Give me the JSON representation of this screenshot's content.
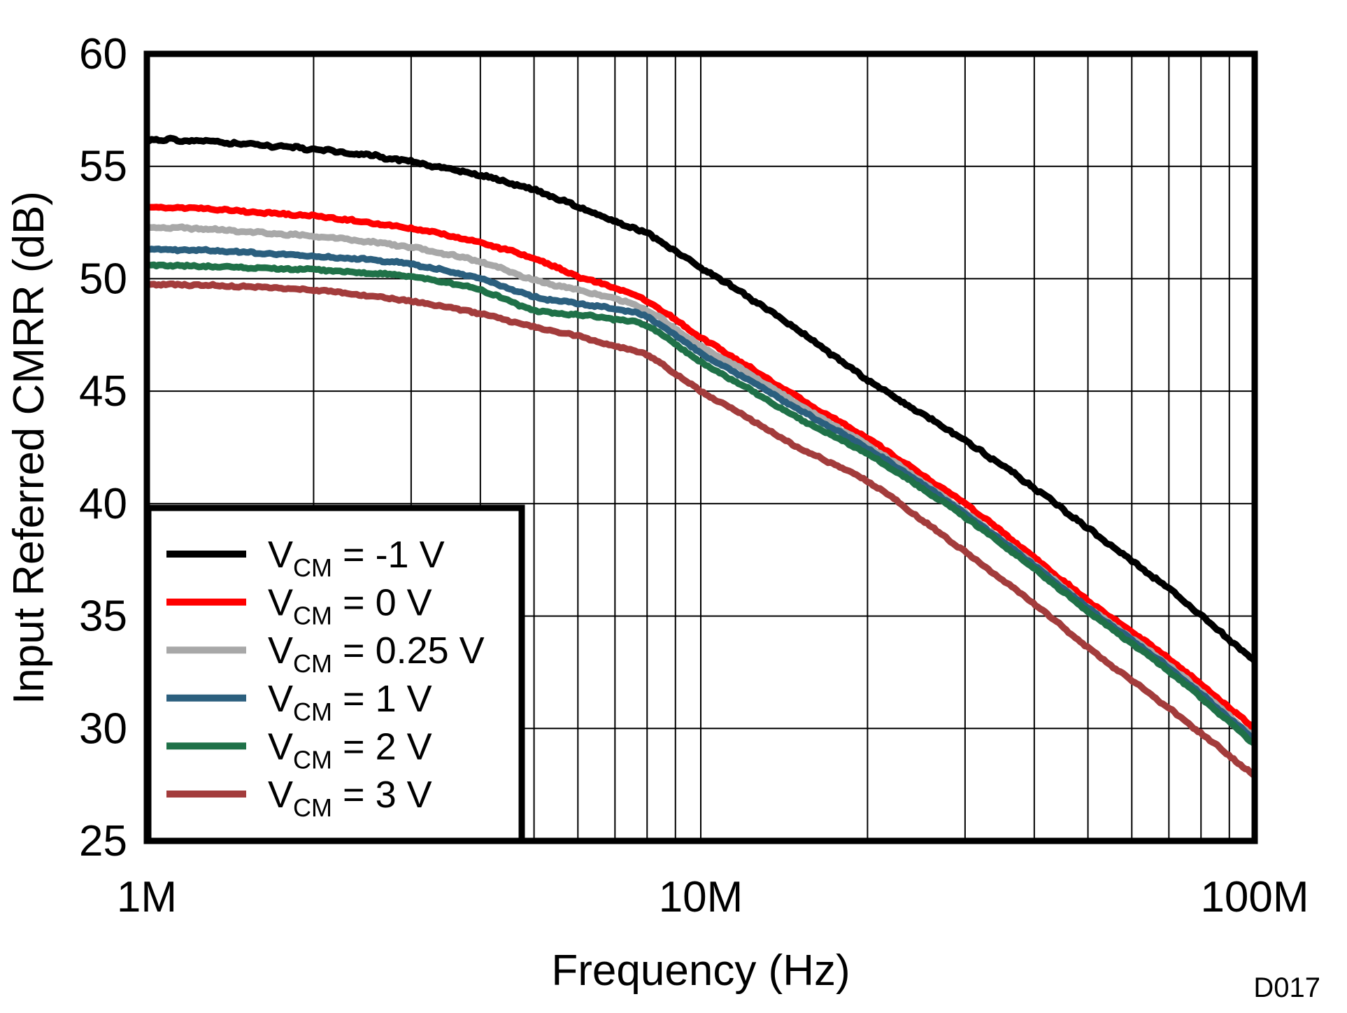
{
  "figure": {
    "watermark": "D017",
    "watermark_color": "#A9A9A9",
    "background": "#FFFFFF",
    "frame_color": "#000000",
    "grid_color": "#000000"
  },
  "chart_data": {
    "type": "line",
    "title": "",
    "xlabel": "Frequency (Hz)",
    "ylabel": "Input Referred CMRR (dB)",
    "x_scale": "log",
    "xlim_hz": [
      1000000,
      100000000
    ],
    "ylim_db": [
      25,
      60
    ],
    "grid": true,
    "legend_position": "bottom-left",
    "x_ticks": [
      {
        "value_hz": 1000000,
        "label": "1M"
      },
      {
        "value_hz": 10000000,
        "label": "10M"
      },
      {
        "value_hz": 100000000,
        "label": "100M"
      }
    ],
    "y_ticks": [
      {
        "value_db": 60,
        "label": "60"
      },
      {
        "value_db": 55,
        "label": "55"
      },
      {
        "value_db": 50,
        "label": "50"
      },
      {
        "value_db": 45,
        "label": "45"
      },
      {
        "value_db": 40,
        "label": "40"
      },
      {
        "value_db": 35,
        "label": "35"
      },
      {
        "value_db": 30,
        "label": "30"
      },
      {
        "value_db": 25,
        "label": "25"
      }
    ],
    "minor_grid_freqs_mhz": [
      2,
      3,
      4,
      5,
      6,
      7,
      8,
      9,
      10,
      20,
      30,
      40,
      50,
      60,
      70,
      80,
      90
    ],
    "x_mhz": [
      1,
      1.3,
      1.7,
      2,
      2.5,
      3,
      4,
      5,
      6,
      7,
      8,
      10,
      12,
      15,
      20,
      25,
      30,
      40,
      50,
      70,
      100
    ],
    "series": [
      {
        "name": "VCM = -1 V",
        "label_base": "V",
        "label_sub": "CM",
        "label_rest": " = -1 V",
        "color": "#000000",
        "noise": 2.0,
        "y_db": [
          56.2,
          56.1,
          55.9,
          55.75,
          55.5,
          55.2,
          54.6,
          53.95,
          53.2,
          52.55,
          52.0,
          50.5,
          49.3,
          47.7,
          45.5,
          44.0,
          42.8,
          40.7,
          38.9,
          36.2,
          33.0
        ]
      },
      {
        "name": "VCM = 0 V",
        "label_base": "V",
        "label_sub": "CM",
        "label_rest": " = 0 V",
        "color": "#FF0000",
        "noise": 1.5,
        "y_db": [
          53.2,
          53.1,
          52.9,
          52.8,
          52.5,
          52.25,
          51.6,
          50.9,
          50.1,
          49.6,
          49.0,
          47.4,
          46.2,
          44.7,
          42.9,
          41.3,
          40.0,
          37.6,
          35.7,
          33.1,
          30.0
        ]
      },
      {
        "name": "VCM = 0.25 V",
        "label_base": "V",
        "label_sub": "CM",
        "label_rest": " = 0.25 V",
        "color": "#A8A8A8",
        "noise": 1.5,
        "y_db": [
          52.3,
          52.2,
          52.0,
          51.9,
          51.65,
          51.4,
          50.75,
          49.95,
          49.5,
          49.1,
          48.6,
          47.0,
          45.9,
          44.4,
          42.6,
          41.0,
          39.6,
          37.3,
          35.4,
          32.8,
          29.6
        ]
      },
      {
        "name": "VCM = 1 V",
        "label_base": "V",
        "label_sub": "CM",
        "label_rest": " = 1 V",
        "color": "#2B5F7E",
        "noise": 1.4,
        "y_db": [
          51.3,
          51.25,
          51.1,
          51.0,
          50.85,
          50.65,
          50.0,
          49.2,
          48.9,
          48.65,
          48.3,
          46.7,
          45.6,
          44.2,
          42.45,
          40.9,
          39.55,
          37.25,
          35.35,
          32.7,
          29.5
        ]
      },
      {
        "name": "VCM = 2 V",
        "label_base": "V",
        "label_sub": "CM",
        "label_rest": " = 2 V",
        "color": "#1F7148",
        "noise": 1.4,
        "y_db": [
          50.6,
          50.55,
          50.45,
          50.4,
          50.25,
          50.1,
          49.5,
          48.6,
          48.4,
          48.2,
          47.9,
          46.3,
          45.2,
          43.8,
          42.2,
          40.7,
          39.4,
          37.1,
          35.2,
          32.55,
          29.3
        ]
      },
      {
        "name": "VCM = 3 V",
        "label_base": "V",
        "label_sub": "CM",
        "label_rest": " = 3 V",
        "color": "#A33C3C",
        "noise": 1.4,
        "y_db": [
          49.75,
          49.7,
          49.6,
          49.5,
          49.25,
          49.0,
          48.45,
          47.85,
          47.45,
          47.0,
          46.6,
          45.0,
          43.9,
          42.5,
          41.0,
          39.3,
          37.85,
          35.55,
          33.6,
          30.9,
          27.9
        ]
      }
    ]
  }
}
